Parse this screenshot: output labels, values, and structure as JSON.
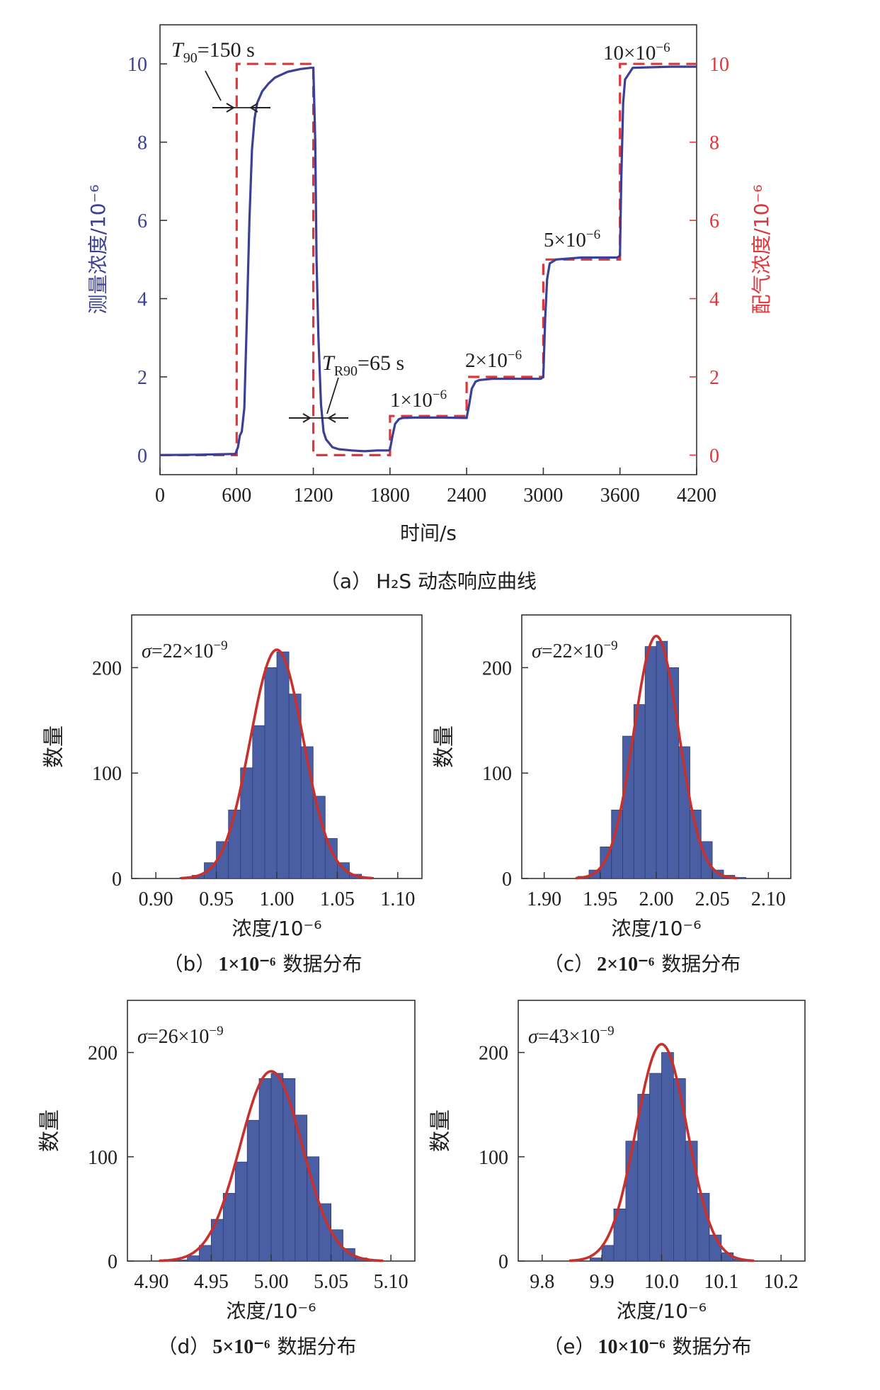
{
  "chart_data": [
    {
      "id": "a",
      "type": "line",
      "caption": {
        "label": "（a）",
        "text": "H₂S 动态响应曲线"
      },
      "xlabel": "时间/s",
      "ylabel_left": "测量浓度/10⁻⁶",
      "ylabel_right": "配气浓度/10⁻⁶",
      "xlim": [
        0,
        4200
      ],
      "ylim": [
        -0.5,
        11
      ],
      "xticks": [
        0,
        600,
        1200,
        1800,
        2400,
        3000,
        3600,
        4200
      ],
      "yticks": [
        0,
        2,
        4,
        6,
        8,
        10
      ],
      "colors": {
        "measured": "#3b3f96",
        "supplied": "#e0363a"
      },
      "series": [
        {
          "name": "测量浓度",
          "axis": "left",
          "style": "solid",
          "points": [
            [
              0,
              0
            ],
            [
              300,
              0.01
            ],
            [
              590,
              0.03
            ],
            [
              610,
              0.2
            ],
            [
              625,
              0.5
            ],
            [
              640,
              0.6
            ],
            [
              660,
              1.2
            ],
            [
              680,
              3.5
            ],
            [
              700,
              6.0
            ],
            [
              720,
              7.8
            ],
            [
              740,
              8.6
            ],
            [
              760,
              9.0
            ],
            [
              800,
              9.3
            ],
            [
              850,
              9.5
            ],
            [
              900,
              9.65
            ],
            [
              1000,
              9.8
            ],
            [
              1100,
              9.87
            ],
            [
              1180,
              9.9
            ],
            [
              1200,
              9.9
            ],
            [
              1215,
              8.0
            ],
            [
              1225,
              5.0
            ],
            [
              1240,
              3.0
            ],
            [
              1260,
              1.3
            ],
            [
              1280,
              0.6
            ],
            [
              1300,
              0.4
            ],
            [
              1350,
              0.2
            ],
            [
              1400,
              0.15
            ],
            [
              1500,
              0.12
            ],
            [
              1600,
              0.1
            ],
            [
              1700,
              0.12
            ],
            [
              1790,
              0.12
            ],
            [
              1800,
              0.15
            ],
            [
              1820,
              0.5
            ],
            [
              1840,
              0.8
            ],
            [
              1870,
              0.92
            ],
            [
              1900,
              0.95
            ],
            [
              2000,
              0.96
            ],
            [
              2200,
              0.96
            ],
            [
              2380,
              0.95
            ],
            [
              2400,
              0.95
            ],
            [
              2420,
              1.3
            ],
            [
              2440,
              1.7
            ],
            [
              2470,
              1.88
            ],
            [
              2500,
              1.92
            ],
            [
              2600,
              1.95
            ],
            [
              2800,
              1.95
            ],
            [
              2980,
              1.95
            ],
            [
              3000,
              2.0
            ],
            [
              3015,
              3.5
            ],
            [
              3030,
              4.5
            ],
            [
              3050,
              4.9
            ],
            [
              3100,
              5.0
            ],
            [
              3300,
              5.05
            ],
            [
              3580,
              5.05
            ],
            [
              3600,
              5.1
            ],
            [
              3610,
              7.0
            ],
            [
              3625,
              9.0
            ],
            [
              3640,
              9.6
            ],
            [
              3700,
              9.9
            ],
            [
              4000,
              9.93
            ],
            [
              4200,
              9.93
            ]
          ]
        },
        {
          "name": "配气浓度",
          "axis": "right",
          "style": "dashed",
          "points": [
            [
              0,
              0
            ],
            [
              600,
              0
            ],
            [
              600,
              10
            ],
            [
              1200,
              10
            ],
            [
              1200,
              0
            ],
            [
              1800,
              0
            ],
            [
              1800,
              1
            ],
            [
              2400,
              1
            ],
            [
              2400,
              2
            ],
            [
              3000,
              2
            ],
            [
              3000,
              5
            ],
            [
              3600,
              5
            ],
            [
              3600,
              10
            ],
            [
              4200,
              10
            ]
          ]
        }
      ],
      "annotations": [
        {
          "symbol": "T",
          "subscript": "90",
          "text": "=150 s"
        },
        {
          "symbol": "T",
          "subscript": "R90",
          "text": "=65 s"
        },
        {
          "text": "1×10",
          "exp": "−6"
        },
        {
          "text": "2×10",
          "exp": "−6"
        },
        {
          "text": "5×10",
          "exp": "−6"
        },
        {
          "text": "10×10",
          "exp": "−6"
        }
      ]
    },
    {
      "id": "b",
      "type": "histogram",
      "caption": {
        "label": "（b）",
        "value": "1×10⁻⁶",
        "text": "数据分布"
      },
      "xlabel": "浓度/10⁻⁶",
      "ylabel": "数量",
      "xlim": [
        0.88,
        1.12
      ],
      "ylim": [
        0,
        250
      ],
      "xticks": [
        "0.90",
        "0.95",
        "1.00",
        "1.05",
        "1.10"
      ],
      "yticks": [
        0,
        100,
        200
      ],
      "sigma": {
        "symbol": "σ",
        "text": "=22×10",
        "exp": "−9"
      },
      "bin_edges": [
        0.92,
        0.93,
        0.94,
        0.95,
        0.96,
        0.97,
        0.98,
        0.99,
        1.0,
        1.01,
        1.02,
        1.03,
        1.04,
        1.05,
        1.06,
        1.07,
        1.08
      ],
      "counts": [
        1,
        3,
        15,
        35,
        65,
        105,
        145,
        200,
        215,
        175,
        125,
        78,
        38,
        15,
        4,
        1
      ],
      "fit": {
        "mean": 1.0,
        "sd": 0.022,
        "peak": 217
      },
      "bar_color": "#4a5ea3",
      "fit_color": "#c8302e"
    },
    {
      "id": "c",
      "type": "histogram",
      "caption": {
        "label": "（c）",
        "value": "2×10⁻⁶",
        "text": "数据分布"
      },
      "xlabel": "浓度/10⁻⁶",
      "ylabel": "数量",
      "xlim": [
        1.88,
        2.12
      ],
      "ylim": [
        0,
        250
      ],
      "xticks": [
        "1.90",
        "1.95",
        "2.00",
        "2.05",
        "2.10"
      ],
      "yticks": [
        0,
        100,
        200
      ],
      "sigma": {
        "symbol": "σ",
        "text": "=22×10",
        "exp": "−9"
      },
      "bin_edges": [
        1.93,
        1.94,
        1.95,
        1.96,
        1.97,
        1.98,
        1.99,
        2.0,
        2.01,
        2.02,
        2.03,
        2.04,
        2.05,
        2.06,
        2.07,
        2.08
      ],
      "counts": [
        2,
        8,
        30,
        65,
        135,
        165,
        220,
        225,
        200,
        125,
        65,
        35,
        8,
        3,
        1
      ],
      "fit": {
        "mean": 2.0,
        "sd": 0.02,
        "peak": 230
      },
      "bar_color": "#4a5ea3",
      "fit_color": "#c8302e"
    },
    {
      "id": "d",
      "type": "histogram",
      "caption": {
        "label": "（d）",
        "value": "5×10⁻⁶",
        "text": "数据分布"
      },
      "xlabel": "浓度/10⁻⁶",
      "ylabel": "数量",
      "xlim": [
        4.88,
        5.12
      ],
      "ylim": [
        0,
        250
      ],
      "xticks": [
        "4.90",
        "4.95",
        "5.00",
        "5.05",
        "5.10"
      ],
      "yticks": [
        0,
        100,
        200
      ],
      "sigma": {
        "symbol": "σ",
        "text": "=26×10",
        "exp": "−9"
      },
      "bin_edges": [
        4.92,
        4.93,
        4.94,
        4.95,
        4.96,
        4.97,
        4.98,
        4.99,
        5.0,
        5.01,
        5.02,
        5.03,
        5.04,
        5.05,
        5.06,
        5.07,
        5.08
      ],
      "counts": [
        1,
        5,
        15,
        40,
        65,
        95,
        135,
        175,
        180,
        175,
        140,
        100,
        55,
        30,
        12,
        3
      ],
      "fit": {
        "mean": 5.0,
        "sd": 0.026,
        "peak": 182
      },
      "bar_color": "#4a5ea3",
      "fit_color": "#c8302e"
    },
    {
      "id": "e",
      "type": "histogram",
      "caption": {
        "label": "（e）",
        "value": "10×10⁻⁶",
        "text": "数据分布"
      },
      "xlabel": "浓度/10⁻⁶",
      "ylabel": "数量",
      "xlim": [
        9.76,
        10.24
      ],
      "ylim": [
        0,
        250
      ],
      "xticks": [
        "9.8",
        "9.9",
        "10.0",
        "10.1",
        "10.2"
      ],
      "yticks": [
        0,
        100,
        200
      ],
      "sigma": {
        "symbol": "σ",
        "text": "=43×10",
        "exp": "−9"
      },
      "bin_edges": [
        9.88,
        9.9,
        9.92,
        9.94,
        9.96,
        9.98,
        10.0,
        10.02,
        10.04,
        10.06,
        10.08,
        10.1,
        10.12,
        10.14
      ],
      "counts": [
        3,
        15,
        50,
        115,
        160,
        180,
        200,
        175,
        115,
        65,
        25,
        8,
        2
      ],
      "fit": {
        "mean": 10.0,
        "sd": 0.043,
        "peak": 208
      },
      "bar_color": "#4a5ea3",
      "fit_color": "#c8302e"
    }
  ]
}
